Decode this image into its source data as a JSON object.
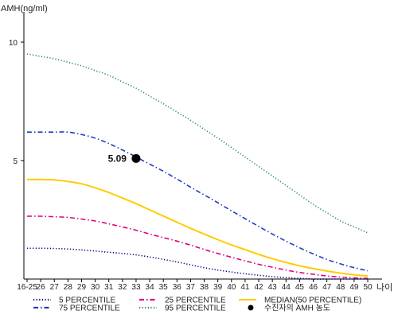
{
  "chart_data": {
    "type": "line",
    "ylabel": "AMH(ng/ml)",
    "xlabel": "나이",
    "ylim": [
      0,
      11
    ],
    "yticks": [
      5,
      10
    ],
    "categories": [
      "16-25",
      "26",
      "27",
      "28",
      "29",
      "30",
      "31",
      "32",
      "33",
      "34",
      "35",
      "36",
      "37",
      "38",
      "39",
      "40",
      "41",
      "42",
      "43",
      "44",
      "45",
      "46",
      "47",
      "48",
      "49",
      "50"
    ],
    "series": [
      {
        "name": "5 PERCENTILE",
        "color": "#000080",
        "dash": "dotted",
        "values": [
          1.3,
          1.3,
          1.29,
          1.27,
          1.23,
          1.18,
          1.13,
          1.08,
          1.02,
          0.93,
          0.83,
          0.72,
          0.6,
          0.48,
          0.38,
          0.3,
          0.22,
          0.16,
          0.1,
          0.06,
          0.03,
          0.0,
          0.0,
          0.0,
          0.0,
          0.0
        ]
      },
      {
        "name": "25 PERCENTILE",
        "color": "#e0007f",
        "dash": "dashdot",
        "values": [
          2.65,
          2.65,
          2.63,
          2.6,
          2.53,
          2.45,
          2.33,
          2.2,
          2.06,
          1.9,
          1.75,
          1.6,
          1.43,
          1.25,
          1.08,
          0.92,
          0.77,
          0.62,
          0.5,
          0.38,
          0.28,
          0.2,
          0.13,
          0.08,
          0.05,
          0.03
        ]
      },
      {
        "name": "MEDIAN(50 PERCENTILE)",
        "color": "#ffcc00",
        "dash": "solid",
        "values": [
          4.2,
          4.2,
          4.18,
          4.12,
          4.02,
          3.85,
          3.65,
          3.42,
          3.18,
          2.92,
          2.66,
          2.4,
          2.14,
          1.9,
          1.66,
          1.44,
          1.24,
          1.04,
          0.86,
          0.7,
          0.56,
          0.44,
          0.34,
          0.25,
          0.18,
          0.13
        ]
      },
      {
        "name": "75 PERCENTILE",
        "color": "#1f3fbf",
        "dash": "dashdot",
        "values": [
          6.2,
          6.2,
          6.2,
          6.2,
          6.1,
          5.95,
          5.72,
          5.45,
          5.15,
          4.85,
          4.55,
          4.22,
          3.88,
          3.55,
          3.22,
          2.88,
          2.55,
          2.22,
          1.9,
          1.6,
          1.32,
          1.06,
          0.83,
          0.64,
          0.48,
          0.35
        ]
      },
      {
        "name": "95 PERCENTILE",
        "color": "#2e8b57",
        "dash": "dotted",
        "values": [
          9.5,
          9.4,
          9.3,
          9.15,
          9.0,
          8.8,
          8.6,
          8.32,
          8.05,
          7.72,
          7.4,
          7.05,
          6.7,
          6.32,
          5.95,
          5.55,
          5.15,
          4.75,
          4.35,
          3.95,
          3.55,
          3.15,
          2.8,
          2.45,
          2.2,
          1.95
        ]
      }
    ],
    "point": {
      "name": "수진자의 AMH 농도",
      "x": "33",
      "y": 5.09,
      "label": "5.09"
    },
    "legend": [
      {
        "label": "5 PERCENTILE",
        "series": 0
      },
      {
        "label": "25 PERCENTILE",
        "series": 1
      },
      {
        "label": "MEDIAN(50 PERCENTILE)",
        "series": 2
      },
      {
        "label": "75 PERCENTILE",
        "series": 3
      },
      {
        "label": "95 PERCENTILE",
        "series": 4
      },
      {
        "label": "수진자의 AMH 농도",
        "marker": "dot"
      }
    ],
    "legend_position": "bottom"
  }
}
